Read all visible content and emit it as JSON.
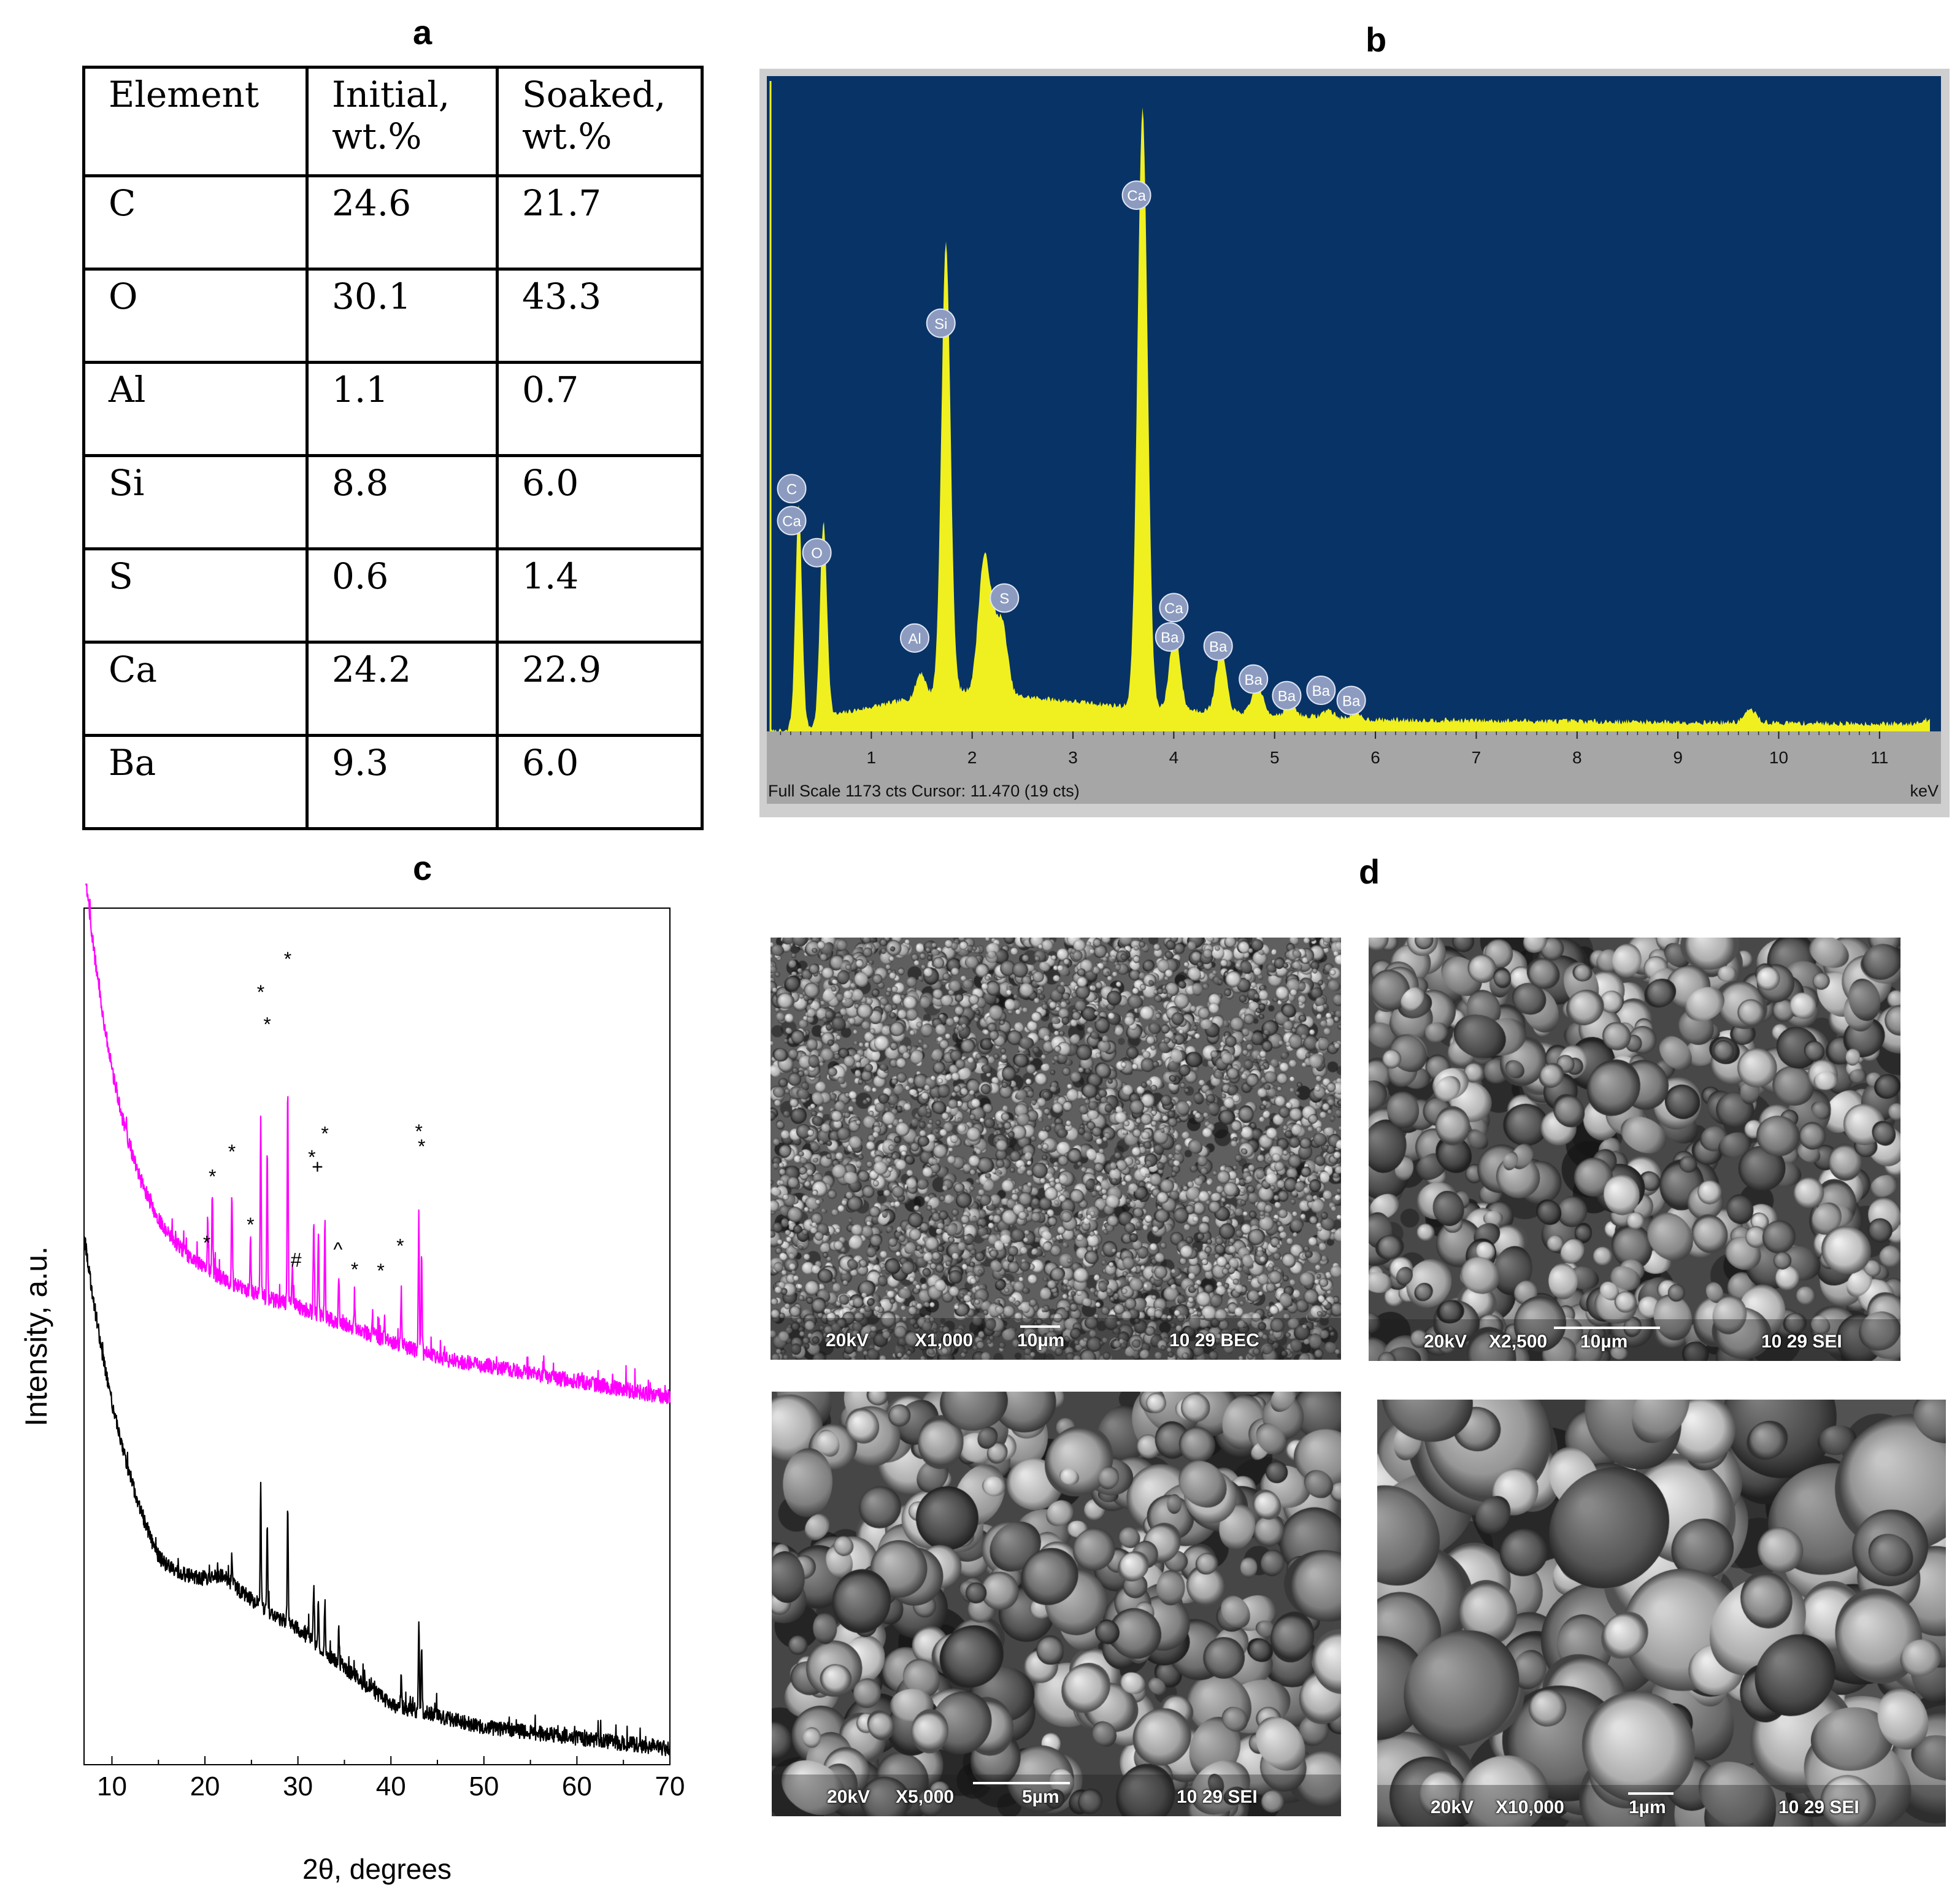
{
  "panel_labels": {
    "a": "a",
    "b": "b",
    "c": "c",
    "d": "d"
  },
  "table": {
    "headers": [
      [
        "Element"
      ],
      [
        "Initial,",
        "wt.%"
      ],
      [
        "Soaked,",
        "wt.%"
      ]
    ],
    "rows": [
      [
        "C",
        "24.6",
        "21.7"
      ],
      [
        "O",
        "30.1",
        "43.3"
      ],
      [
        "Al",
        "1.1",
        "0.7"
      ],
      [
        "Si",
        "8.8",
        "6.0"
      ],
      [
        "S",
        "0.6",
        "1.4"
      ],
      [
        "Ca",
        "24.2",
        "22.9"
      ],
      [
        "Ba",
        "9.3",
        "6.0"
      ]
    ]
  },
  "chart_data": [
    {
      "type": "area",
      "panel": "b",
      "x_unit": "keV",
      "xlim": [
        0,
        11.5
      ],
      "ylim": [
        0,
        1173
      ],
      "xticks": [
        1,
        2,
        3,
        4,
        5,
        6,
        7,
        8,
        9,
        10,
        11
      ],
      "footer": "Full Scale 1173 cts Cursor: 11.470  (19 cts)",
      "unit_label": "keV",
      "colors": {
        "background": "#083366",
        "spectrum": "#f0f020",
        "axis_bar": "#a6a6a6",
        "marker": "#8c9bbf"
      },
      "peaks": [
        {
          "x": 0.2,
          "y": 0,
          "sigma": 0.02
        },
        {
          "x": 0.28,
          "y": 420,
          "sigma": 0.032
        },
        {
          "x": 0.525,
          "y": 365,
          "sigma": 0.035
        },
        {
          "x": 1.49,
          "y": 45,
          "sigma": 0.045
        },
        {
          "x": 1.74,
          "y": 840,
          "sigma": 0.045
        },
        {
          "x": 2.11,
          "y": 200,
          "sigma": 0.055
        },
        {
          "x": 2.2,
          "y": 120,
          "sigma": 0.07
        },
        {
          "x": 2.31,
          "y": 100,
          "sigma": 0.05
        },
        {
          "x": 3.69,
          "y": 1120,
          "sigma": 0.05
        },
        {
          "x": 4.01,
          "y": 150,
          "sigma": 0.05
        },
        {
          "x": 4.47,
          "y": 115,
          "sigma": 0.05
        },
        {
          "x": 4.83,
          "y": 55,
          "sigma": 0.05
        },
        {
          "x": 5.16,
          "y": 18,
          "sigma": 0.05
        },
        {
          "x": 5.53,
          "y": 14,
          "sigma": 0.05
        },
        {
          "x": 5.8,
          "y": 10,
          "sigma": 0.05
        },
        {
          "x": 9.72,
          "y": 24,
          "sigma": 0.06
        },
        {
          "x": 11.45,
          "y": 8,
          "sigma": 0.06
        }
      ],
      "markers": [
        {
          "label": "C",
          "x": 0.21,
          "y": 455
        },
        {
          "label": "Ca",
          "x": 0.21,
          "y": 395
        },
        {
          "label": "O",
          "x": 0.46,
          "y": 335
        },
        {
          "label": "Al",
          "x": 1.43,
          "y": 175
        },
        {
          "label": "Si",
          "x": 1.69,
          "y": 765
        },
        {
          "label": "S",
          "x": 2.32,
          "y": 250
        },
        {
          "label": "Ca",
          "x": 3.63,
          "y": 1005
        },
        {
          "label": "Ca",
          "x": 4.0,
          "y": 232
        },
        {
          "label": "Ba",
          "x": 3.96,
          "y": 177
        },
        {
          "label": "Ba",
          "x": 4.44,
          "y": 160
        },
        {
          "label": "Ba",
          "x": 4.79,
          "y": 98
        },
        {
          "label": "Ba",
          "x": 5.12,
          "y": 67
        },
        {
          "label": "Ba",
          "x": 5.46,
          "y": 77
        },
        {
          "label": "Ba",
          "x": 5.76,
          "y": 58
        }
      ]
    },
    {
      "type": "line",
      "panel": "c",
      "xlabel": "2θ, degrees",
      "ylabel": "Intensity, a.u.",
      "xlim": [
        7,
        70
      ],
      "xticks": [
        10,
        20,
        30,
        40,
        50,
        60,
        70
      ],
      "series": [
        {
          "color": "#ff00ff",
          "decay_amplitude": 41.5,
          "decay_rate": 0.215,
          "baseline": [
            [
              7,
              13
            ],
            [
              20,
              14
            ],
            [
              30,
              12.5
            ],
            [
              45,
              8
            ],
            [
              60,
              5.8
            ],
            [
              70,
              4.3
            ]
          ],
          "peaks": [
            [
              20.3,
              4.5
            ],
            [
              20.8,
              7.5
            ],
            [
              22.9,
              8.5
            ],
            [
              24.9,
              4.8
            ],
            [
              26.0,
              17.0
            ],
            [
              26.7,
              14.0
            ],
            [
              28.9,
              20.5
            ],
            [
              29.4,
              3.2
            ],
            [
              31.7,
              8.5
            ],
            [
              32.2,
              8
            ],
            [
              32.9,
              9.0
            ],
            [
              34.4,
              4.0
            ],
            [
              36.1,
              2.3
            ],
            [
              38.0,
              1.6
            ],
            [
              39.3,
              1.8
            ],
            [
              41.1,
              4.0
            ],
            [
              43.0,
              13.0
            ],
            [
              43.3,
              9.0
            ]
          ]
        },
        {
          "color": "#000000",
          "decay_amplitude": 36.0,
          "decay_rate": 0.17,
          "baseline": [
            [
              7,
              -16.5
            ],
            [
              15,
              -19.8
            ],
            [
              22,
              -15.2
            ],
            [
              30,
              -18
            ],
            [
              40,
              -24.5
            ],
            [
              50,
              -26.5
            ],
            [
              60,
              -27.5
            ],
            [
              70,
              -28.5
            ]
          ],
          "peaks": [
            [
              22.9,
              2.5
            ],
            [
              26.0,
              11.5
            ],
            [
              26.7,
              8.0
            ],
            [
              28.9,
              11.0
            ],
            [
              31.7,
              5.0
            ],
            [
              32.2,
              4.5
            ],
            [
              32.9,
              4.5
            ],
            [
              34.4,
              3.0
            ],
            [
              41.1,
              2.5
            ],
            [
              43.0,
              8.5
            ],
            [
              43.3,
              5.5
            ]
          ]
        }
      ],
      "annotations": [
        {
          "text": "*",
          "x": 20.2,
          "y": 18.8
        },
        {
          "text": "*",
          "x": 20.8,
          "y": 25.0
        },
        {
          "text": "*",
          "x": 22.9,
          "y": 27.3
        },
        {
          "text": "*",
          "x": 24.9,
          "y": 20.5
        },
        {
          "text": "*",
          "x": 26.0,
          "y": 42.2
        },
        {
          "text": "*",
          "x": 26.7,
          "y": 39.2
        },
        {
          "text": "*",
          "x": 28.9,
          "y": 45.3
        },
        {
          "text": "#",
          "x": 29.8,
          "y": 17.2
        },
        {
          "text": "*",
          "x": 31.5,
          "y": 26.8
        },
        {
          "text": "+",
          "x": 32.1,
          "y": 25.9
        },
        {
          "text": "*",
          "x": 32.9,
          "y": 29.0
        },
        {
          "text": "^",
          "x": 34.3,
          "y": 18.2
        },
        {
          "text": "*",
          "x": 36.1,
          "y": 16.3
        },
        {
          "text": "*",
          "x": 38.9,
          "y": 16.2
        },
        {
          "text": "*",
          "x": 41.0,
          "y": 18.5
        },
        {
          "text": "*",
          "x": 43.0,
          "y": 29.2
        },
        {
          "text": "*",
          "x": 43.3,
          "y": 27.8
        }
      ]
    }
  ],
  "sem_images": [
    {
      "voltage": "20kV",
      "mag": "X1,000",
      "scale": "10µm",
      "info": "10 29 BEC",
      "style": "fine",
      "seed": 11,
      "scale_fraction": 0.07
    },
    {
      "voltage": "20kV",
      "mag": "X2,500",
      "scale": "10µm",
      "info": "10 29 SEI",
      "style": "medium",
      "seed": 23,
      "scale_fraction": 0.2
    },
    {
      "voltage": "20kV",
      "mag": "X5,000",
      "scale": "5µm",
      "info": "10 29 SEI",
      "style": "coarse",
      "seed": 37,
      "scale_fraction": 0.17
    },
    {
      "voltage": "20kV",
      "mag": "X10,000",
      "scale": "1µm",
      "info": "10 29 SEI",
      "style": "xcoarse",
      "seed": 51,
      "scale_fraction": 0.08
    }
  ]
}
